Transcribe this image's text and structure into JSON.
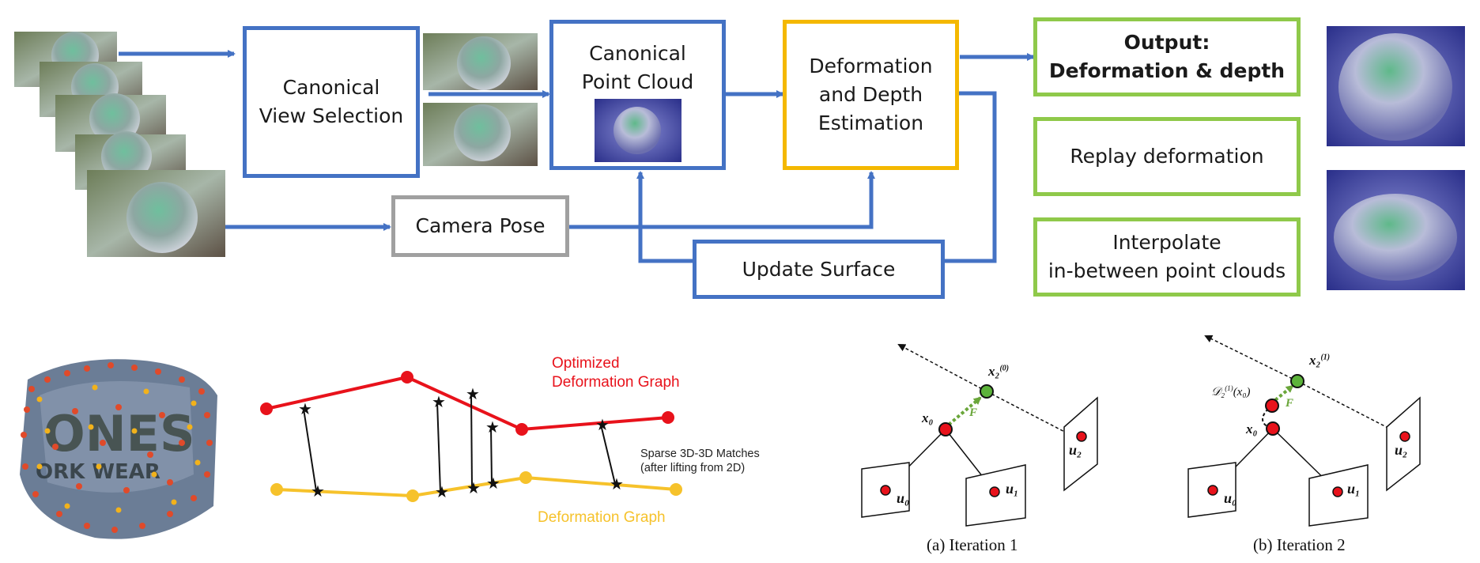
{
  "pipeline": {
    "canonical_view_selection": "Canonical\nView Selection",
    "canonical_point_cloud": "Canonical\nPoint Cloud",
    "deformation_depth_estimation": "Deformation\nand Depth\nEstimation",
    "camera_pose": "Camera Pose",
    "update_surface": "Update Surface",
    "output": "Output:\nDeformation & depth",
    "replay": "Replay deformation",
    "interpolate": "Interpolate\nin-between point clouds"
  },
  "graph": {
    "optimized_label": "Optimized\nDeformation Graph",
    "deformation_label": "Deformation Graph",
    "matches_label": "Sparse 3D-3D Matches\n(after lifting from 2D)"
  },
  "iterations": {
    "a_caption": "(a) Iteration 1",
    "b_caption": "(b) Iteration 2",
    "x0": "x₀",
    "x2_0": "x₂",
    "x2_0_sup": "(0)",
    "x2_1": "x₂",
    "x2_1_sup": "(1)",
    "F": "F",
    "u0": "u₀",
    "u1": "u₁",
    "u2": "u₂",
    "d_label": "𝒟₂",
    "d_sup": "(1)",
    "d_arg": "(x₀)"
  },
  "colors": {
    "blue": "#4472c4",
    "gold": "#f4b800",
    "gray": "#a0a0a0",
    "green": "#8fc94a",
    "red": "#e8121b",
    "yellow": "#f6c22b"
  }
}
